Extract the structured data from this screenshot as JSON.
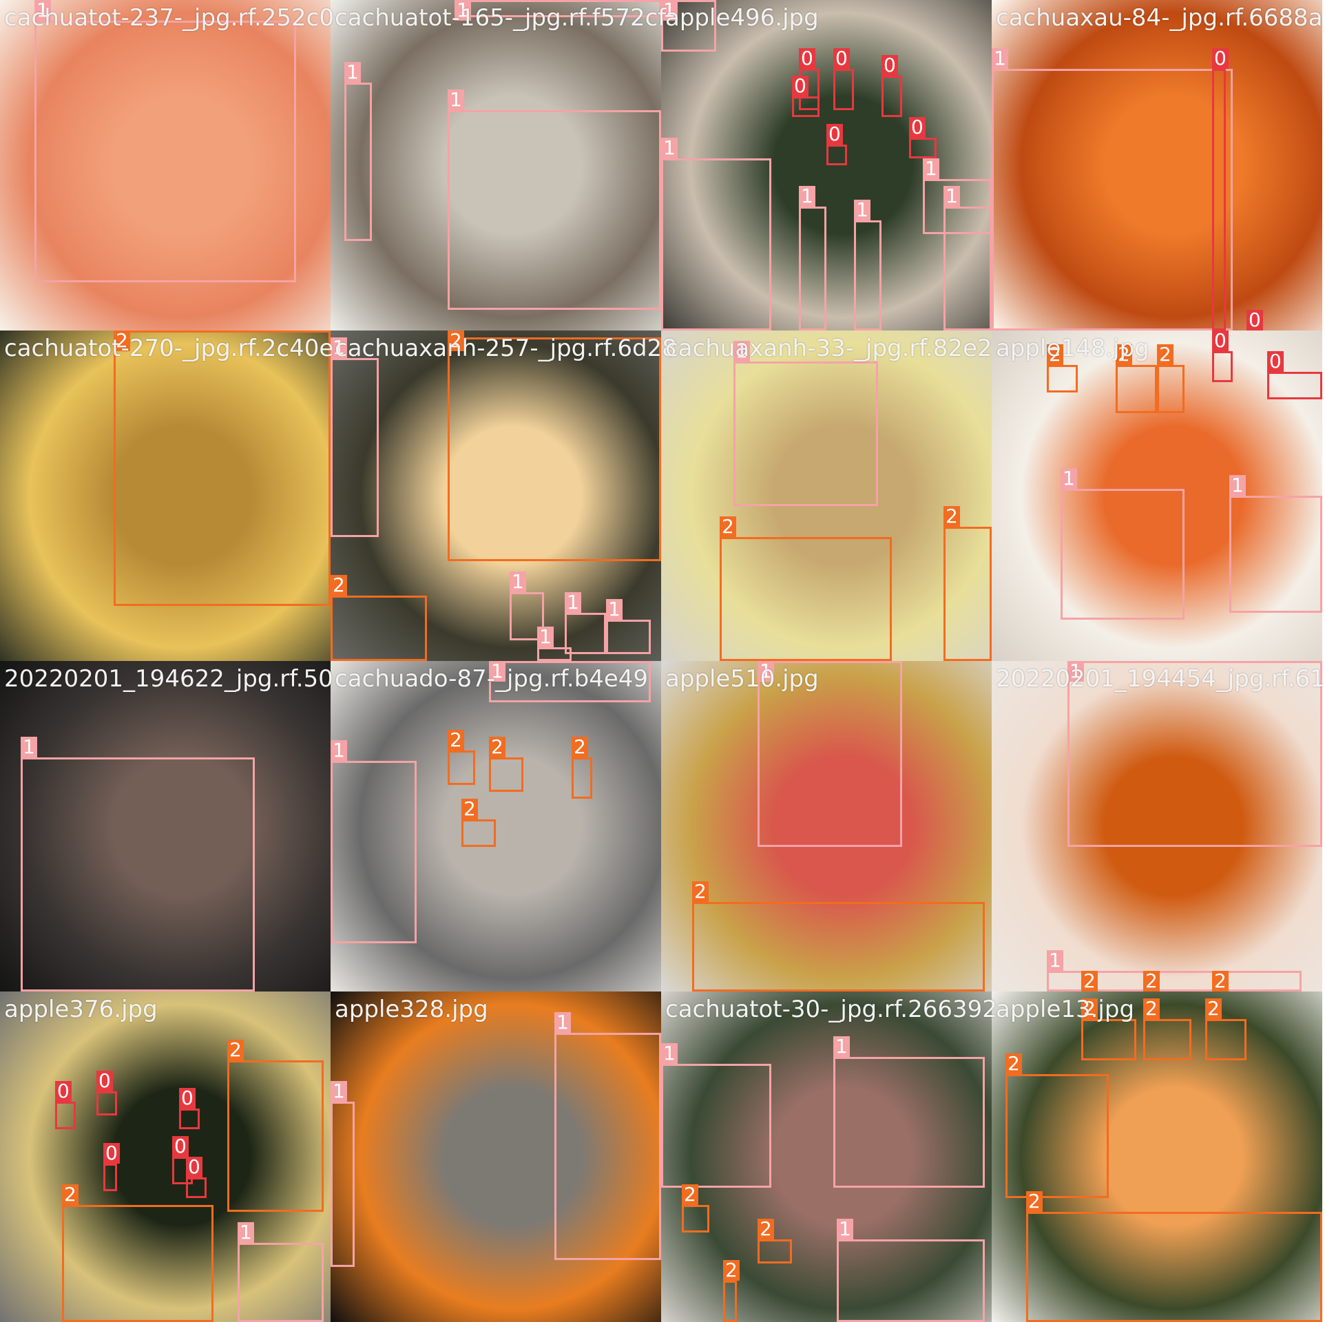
{
  "palette": {
    "class0": "#e8383f",
    "class1": "#f5a3a6",
    "class2": "#f26c21",
    "tile_bg": "#727272"
  },
  "tiles": [
    {
      "name": "cachuatot-237-_jpg.rf.252c0",
      "shade": [
        "#f7f2ea",
        "#f2a07a",
        "#e8845f"
      ],
      "boxes": [
        {
          "cls": "1"
        }
      ]
    },
    {
      "name": "cachuatot-165-_jpg.rf.f572cf",
      "shade": [
        "#efefea",
        "#c9c3b7",
        "#7a6f62"
      ],
      "boxes": [
        {
          "cls": "1"
        },
        {
          "cls": "1"
        },
        {
          "cls": "1"
        }
      ]
    },
    {
      "name": "apple496.jpg",
      "shade": [
        "#3a3a34",
        "#2d3d28",
        "#c9bdae"
      ],
      "boxes": [
        {
          "cls": "1"
        },
        {
          "cls": "1"
        },
        {
          "cls": "0"
        },
        {
          "cls": "0"
        },
        {
          "cls": "0"
        },
        {
          "cls": "0"
        },
        {
          "cls": "0"
        },
        {
          "cls": "0"
        },
        {
          "cls": "1"
        },
        {
          "cls": "1"
        },
        {
          "cls": "1"
        },
        {
          "cls": "1"
        }
      ]
    },
    {
      "name": "cachuaxau-84-_jpg.rf.6688a",
      "shade": [
        "#fffaf3",
        "#ee7a2a",
        "#bf4a12"
      ],
      "boxes": [
        {
          "cls": "1"
        },
        {
          "cls": "0"
        },
        {
          "cls": "0"
        }
      ]
    },
    {
      "name": "cachuatot-270-_jpg.rf.2c40e",
      "shade": [
        "#2f3325",
        "#b78a36",
        "#e8c25a"
      ],
      "boxes": [
        {
          "cls": "2"
        }
      ]
    },
    {
      "name": "cachuaxanh-257-_jpg.rf.6d28",
      "shade": [
        "#6a6a66",
        "#f2d29a",
        "#3b3a2c"
      ],
      "boxes": [
        {
          "cls": "1"
        },
        {
          "cls": "2"
        },
        {
          "cls": "2"
        },
        {
          "cls": "1"
        },
        {
          "cls": "1"
        },
        {
          "cls": "1"
        },
        {
          "cls": "1"
        }
      ]
    },
    {
      "name": "cachuaxanh-33-_jpg.rf.82e2",
      "shade": [
        "#d6d3cd",
        "#c6a870",
        "#e8df9a"
      ],
      "boxes": [
        {
          "cls": "1"
        },
        {
          "cls": "2"
        },
        {
          "cls": "2"
        }
      ]
    },
    {
      "name": "apple148.jpg",
      "shade": [
        "#d8d0c6",
        "#e96a2a",
        "#f4efe7"
      ],
      "boxes": [
        {
          "cls": "2"
        },
        {
          "cls": "2"
        },
        {
          "cls": "2"
        },
        {
          "cls": "1"
        },
        {
          "cls": "1"
        },
        {
          "cls": "0"
        },
        {
          "cls": "0"
        }
      ]
    },
    {
      "name": "20220201_194622_jpg.rf.50",
      "shade": [
        "#141414",
        "#735f56",
        "#3a3533"
      ],
      "boxes": [
        {
          "cls": "1"
        }
      ]
    },
    {
      "name": "cachuado-87-_jpg.rf.b4e49",
      "shade": [
        "#e9e6e1",
        "#b9b3ac",
        "#6a6a6a"
      ],
      "boxes": [
        {
          "cls": "1"
        },
        {
          "cls": "2"
        },
        {
          "cls": "2"
        },
        {
          "cls": "2"
        },
        {
          "cls": "2"
        },
        {
          "cls": "1"
        }
      ]
    },
    {
      "name": "apple510.jpg",
      "shade": [
        "#d9d9d9",
        "#d9574c",
        "#c9a24a"
      ],
      "boxes": [
        {
          "cls": "1"
        },
        {
          "cls": "2"
        }
      ]
    },
    {
      "name": "20220201_194454_jpg.rf.61",
      "shade": [
        "#ece7e1",
        "#cf5a10",
        "#f0ddd0"
      ],
      "boxes": [
        {
          "cls": "1"
        },
        {
          "cls": "1"
        },
        {
          "cls": "2"
        },
        {
          "cls": "2"
        },
        {
          "cls": "2"
        }
      ]
    },
    {
      "name": "apple376.jpg",
      "shade": [
        "#727272",
        "#1d2616",
        "#d8c27a"
      ],
      "boxes": [
        {
          "cls": "0"
        },
        {
          "cls": "0"
        },
        {
          "cls": "0"
        },
        {
          "cls": "0"
        },
        {
          "cls": "0"
        },
        {
          "cls": "0"
        },
        {
          "cls": "2"
        },
        {
          "cls": "2"
        },
        {
          "cls": "1"
        }
      ]
    },
    {
      "name": "apple328.jpg",
      "shade": [
        "#0f0f0f",
        "#7d7a74",
        "#e87d20"
      ],
      "boxes": [
        {
          "cls": "1"
        },
        {
          "cls": "1"
        }
      ]
    },
    {
      "name": "cachuatot-30-_jpg.rf.266392",
      "shade": [
        "#d8d3ce",
        "#9a6f66",
        "#3a4a34"
      ],
      "boxes": [
        {
          "cls": "1"
        },
        {
          "cls": "1"
        },
        {
          "cls": "1"
        },
        {
          "cls": "2"
        },
        {
          "cls": "2"
        },
        {
          "cls": "2"
        }
      ]
    },
    {
      "name": "apple13.jpg",
      "shade": [
        "#f4f2ef",
        "#f0a054",
        "#3c4a2a"
      ],
      "boxes": [
        {
          "cls": "2"
        },
        {
          "cls": "2"
        },
        {
          "cls": "2"
        },
        {
          "cls": "2"
        },
        {
          "cls": "2"
        }
      ]
    }
  ]
}
